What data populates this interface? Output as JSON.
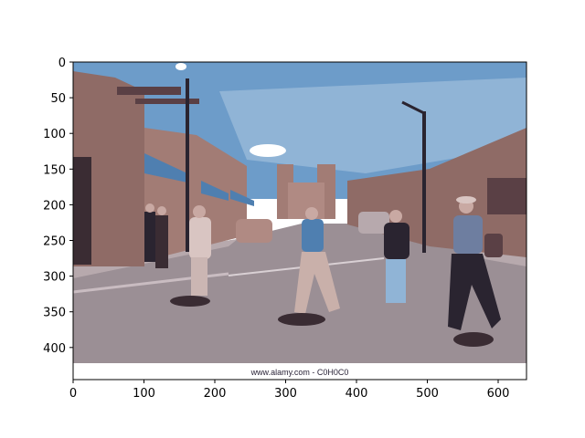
{
  "chart_data": {
    "type": "image",
    "title": "",
    "xlabel": "",
    "ylabel": "",
    "xlim": [
      0,
      640
    ],
    "ylim": [
      445,
      0
    ],
    "y_axis_inverted": true,
    "xticks": [
      0,
      100,
      200,
      300,
      400,
      500,
      600
    ],
    "yticks": [
      0,
      50,
      100,
      150,
      200,
      250,
      300,
      350,
      400
    ],
    "grid": false,
    "legend": "none",
    "image_content": {
      "scene": "street with pedestrians crossing, adobe buildings on both sides, lamp posts, parked cars, blue sky",
      "watermark_text": "www.alamy.com - C0H0C0"
    },
    "colors": {
      "sky": "#6d9cc9",
      "sky_light": "#90b4d6",
      "buildings": "#8f6b66",
      "buildings_dark": "#5a4045",
      "road": "#9b8f95",
      "sidewalk": "#b7a9ad",
      "figure_dark": "#2a2430",
      "shirt_blue": "#4f7fb0",
      "watermark_band": "#ffffff"
    }
  }
}
